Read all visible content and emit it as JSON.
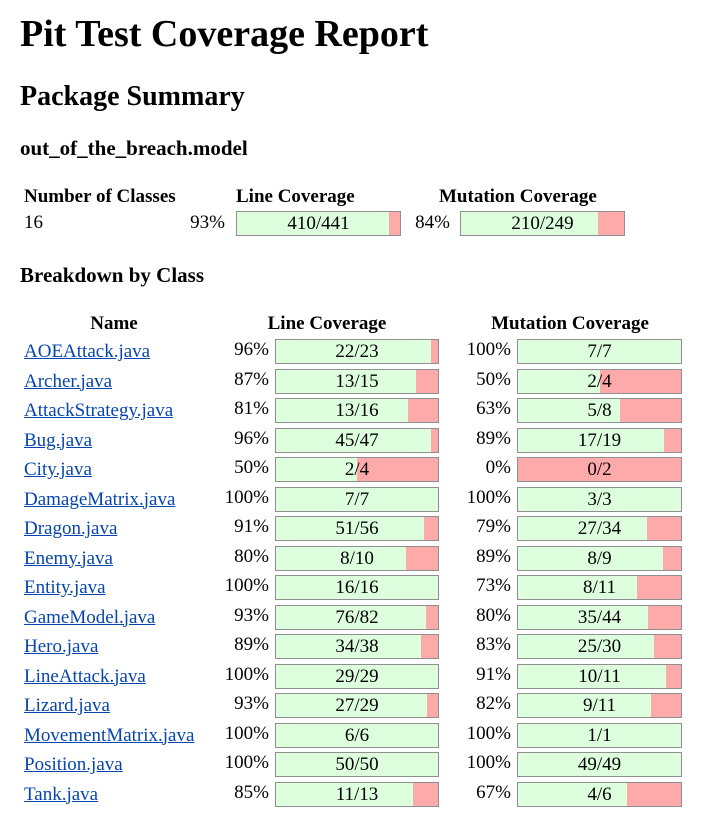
{
  "title": "Pit Test Coverage Report",
  "package_summary_heading": "Package Summary",
  "package_name": "out_of_the_breach.model",
  "summary": {
    "headers": {
      "classes": "Number of Classes",
      "line": "Line Coverage",
      "mutation": "Mutation Coverage"
    },
    "classes": "16",
    "line_pct": "93%",
    "line_label": "410/441",
    "line_fraction": 0.9297,
    "mutation_pct": "84%",
    "mutation_label": "210/249",
    "mutation_fraction": 0.8434
  },
  "breakdown_heading": "Breakdown by Class",
  "table": {
    "headers": {
      "name": "Name",
      "line": "Line Coverage",
      "mutation": "Mutation Coverage"
    },
    "rows": [
      {
        "name": "AOEAttack.java",
        "line_pct": "96%",
        "line_label": "22/23",
        "mutation_pct": "100%",
        "mutation_label": "7/7"
      },
      {
        "name": "Archer.java",
        "line_pct": "87%",
        "line_label": "13/15",
        "mutation_pct": "50%",
        "mutation_label": "2/4"
      },
      {
        "name": "AttackStrategy.java",
        "line_pct": "81%",
        "line_label": "13/16",
        "mutation_pct": "63%",
        "mutation_label": "5/8"
      },
      {
        "name": "Bug.java",
        "line_pct": "96%",
        "line_label": "45/47",
        "mutation_pct": "89%",
        "mutation_label": "17/19"
      },
      {
        "name": "City.java",
        "line_pct": "50%",
        "line_label": "2/4",
        "mutation_pct": "0%",
        "mutation_label": "0/2"
      },
      {
        "name": "DamageMatrix.java",
        "line_pct": "100%",
        "line_label": "7/7",
        "mutation_pct": "100%",
        "mutation_label": "3/3"
      },
      {
        "name": "Dragon.java",
        "line_pct": "91%",
        "line_label": "51/56",
        "mutation_pct": "79%",
        "mutation_label": "27/34"
      },
      {
        "name": "Enemy.java",
        "line_pct": "80%",
        "line_label": "8/10",
        "mutation_pct": "89%",
        "mutation_label": "8/9"
      },
      {
        "name": "Entity.java",
        "line_pct": "100%",
        "line_label": "16/16",
        "mutation_pct": "73%",
        "mutation_label": "8/11"
      },
      {
        "name": "GameModel.java",
        "line_pct": "93%",
        "line_label": "76/82",
        "mutation_pct": "80%",
        "mutation_label": "35/44"
      },
      {
        "name": "Hero.java",
        "line_pct": "89%",
        "line_label": "34/38",
        "mutation_pct": "83%",
        "mutation_label": "25/30"
      },
      {
        "name": "LineAttack.java",
        "line_pct": "100%",
        "line_label": "29/29",
        "mutation_pct": "91%",
        "mutation_label": "10/11"
      },
      {
        "name": "Lizard.java",
        "line_pct": "93%",
        "line_label": "27/29",
        "mutation_pct": "82%",
        "mutation_label": "9/11"
      },
      {
        "name": "MovementMatrix.java",
        "line_pct": "100%",
        "line_label": "6/6",
        "mutation_pct": "100%",
        "mutation_label": "1/1"
      },
      {
        "name": "Position.java",
        "line_pct": "100%",
        "line_label": "50/50",
        "mutation_pct": "100%",
        "mutation_label": "49/49"
      },
      {
        "name": "Tank.java",
        "line_pct": "85%",
        "line_label": "11/13",
        "mutation_pct": "67%",
        "mutation_label": "4/6"
      }
    ]
  },
  "colors": {
    "covered": "#ddffdd",
    "uncovered": "#ffaaaa",
    "link": "#0645ad",
    "bar_border": "#8f8f8f"
  }
}
